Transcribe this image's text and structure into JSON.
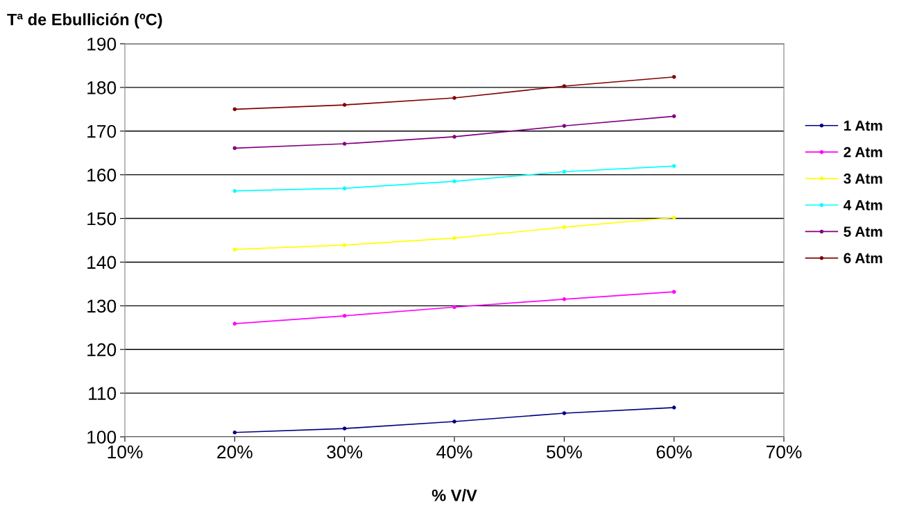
{
  "chart_data": {
    "type": "line",
    "ylabel": "Tª de Ebullición (ºC)",
    "xlabel": "% V/V",
    "x": [
      20,
      30,
      40,
      50,
      60
    ],
    "xlim": [
      10,
      70
    ],
    "xticks": [
      {
        "value": 10,
        "label": "10%"
      },
      {
        "value": 20,
        "label": "20%"
      },
      {
        "value": 30,
        "label": "30%"
      },
      {
        "value": 40,
        "label": "40%"
      },
      {
        "value": 50,
        "label": "50%"
      },
      {
        "value": 60,
        "label": "60%"
      },
      {
        "value": 70,
        "label": "70%"
      }
    ],
    "ylim": [
      100,
      190
    ],
    "yticks": [
      100,
      110,
      120,
      130,
      140,
      150,
      160,
      170,
      180,
      190
    ],
    "grid": "y",
    "legend": "right",
    "marker": "circle",
    "line_style": "solid",
    "series": [
      {
        "name": "1 Atm",
        "color": "#000080",
        "values": [
          101.0,
          101.9,
          103.5,
          105.4,
          106.7
        ]
      },
      {
        "name": "2 Atm",
        "color": "#ff00ff",
        "values": [
          125.9,
          127.7,
          129.7,
          131.5,
          133.2
        ]
      },
      {
        "name": "3 Atm",
        "color": "#ffff00",
        "values": [
          142.9,
          143.9,
          145.5,
          148.0,
          150.2
        ]
      },
      {
        "name": "4 Atm",
        "color": "#00ffff",
        "values": [
          156.3,
          156.9,
          158.5,
          160.7,
          162.0
        ]
      },
      {
        "name": "5 Atm",
        "color": "#800080",
        "values": [
          166.1,
          167.1,
          168.7,
          171.2,
          173.4
        ]
      },
      {
        "name": "6 Atm",
        "color": "#800000",
        "values": [
          175.0,
          176.0,
          177.6,
          180.3,
          182.4
        ]
      }
    ]
  }
}
